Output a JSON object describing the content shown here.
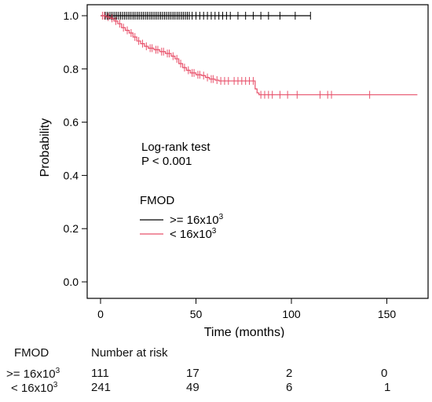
{
  "chart_data": {
    "type": "line",
    "subtype": "kaplan-meier",
    "xlabel": "Time (months)",
    "ylabel": "Probability",
    "xlim": [
      -5,
      170
    ],
    "ylim": [
      0,
      1
    ],
    "xticks": [
      "0",
      "50",
      "100",
      "150"
    ],
    "yticks": [
      "0.0",
      "0.2",
      "0.4",
      "0.6",
      "0.8",
      "1.0"
    ],
    "annotation": {
      "line1": "Log-rank test",
      "line2": "P < 0.001"
    },
    "legend": {
      "title": "FMOD",
      "placement": "center-left",
      "items": [
        {
          "base": ">= 16x10",
          "exp": "3",
          "color": "#000000"
        },
        {
          "base": "< 16x10",
          "exp": "3",
          "color": "#e8506a"
        }
      ]
    },
    "series": [
      {
        "name": ">= 16x10^3",
        "color": "#000000",
        "steps": [
          [
            0,
            1.0
          ],
          [
            110,
            1.0
          ]
        ],
        "censor_x": [
          2.5,
          3.5,
          4.5,
          5.5,
          6.5,
          7.5,
          8.5,
          9.5,
          10.5,
          11.5,
          12.5,
          13.5,
          14.5,
          15.5,
          16.5,
          17.5,
          18.5,
          19.5,
          20.5,
          21.5,
          22.5,
          23.5,
          24.5,
          25.5,
          26.5,
          27.5,
          28.5,
          29.5,
          30.5,
          31.5,
          32.5,
          33.5,
          34.5,
          35.5,
          36.5,
          37.5,
          38.5,
          39.5,
          40.5,
          41.5,
          42.5,
          43.5,
          44.5,
          45.5,
          46.5,
          48,
          50,
          52,
          54,
          56,
          58,
          60,
          62,
          64,
          66,
          68,
          72,
          76,
          80,
          84,
          88,
          94,
          102,
          110
        ]
      },
      {
        "name": "< 16x10^3",
        "color": "#e8506a",
        "steps": [
          [
            0,
            1.0
          ],
          [
            3,
            0.995
          ],
          [
            5,
            0.99
          ],
          [
            7,
            0.98
          ],
          [
            9,
            0.97
          ],
          [
            11,
            0.955
          ],
          [
            13,
            0.945
          ],
          [
            15,
            0.935
          ],
          [
            17,
            0.92
          ],
          [
            19,
            0.905
          ],
          [
            21,
            0.895
          ],
          [
            23,
            0.885
          ],
          [
            25,
            0.878
          ],
          [
            28,
            0.872
          ],
          [
            31,
            0.865
          ],
          [
            34,
            0.858
          ],
          [
            37,
            0.848
          ],
          [
            39,
            0.838
          ],
          [
            41,
            0.82
          ],
          [
            43,
            0.805
          ],
          [
            45,
            0.795
          ],
          [
            47,
            0.785
          ],
          [
            50,
            0.778
          ],
          [
            53,
            0.775
          ],
          [
            55,
            0.768
          ],
          [
            57,
            0.762
          ],
          [
            60,
            0.758
          ],
          [
            62,
            0.755
          ],
          [
            81,
            0.725
          ],
          [
            82,
            0.71
          ],
          [
            83,
            0.703
          ],
          [
            166,
            0.703
          ]
        ],
        "censor_x": [
          1,
          2,
          4,
          6,
          8,
          10,
          12,
          14,
          16,
          18,
          20,
          22,
          24,
          26,
          27,
          29,
          30,
          32,
          33,
          35,
          36,
          38,
          40,
          42,
          44,
          46,
          48,
          49,
          51,
          52,
          54,
          56,
          58,
          59,
          61,
          63,
          65,
          67,
          70,
          72,
          74,
          76,
          78,
          80,
          84,
          86,
          88,
          90,
          94,
          98,
          103,
          115,
          119,
          121,
          141
        ]
      }
    ]
  },
  "risk_table": {
    "header_group": "FMOD",
    "header_title": "Number at risk",
    "rows": [
      {
        "base": ">= 16x10",
        "exp": "3",
        "values": [
          "111",
          "17",
          "2",
          "0"
        ]
      },
      {
        "base": "< 16x10",
        "exp": "3",
        "values": [
          "241",
          "49",
          "6",
          "1"
        ]
      }
    ]
  }
}
